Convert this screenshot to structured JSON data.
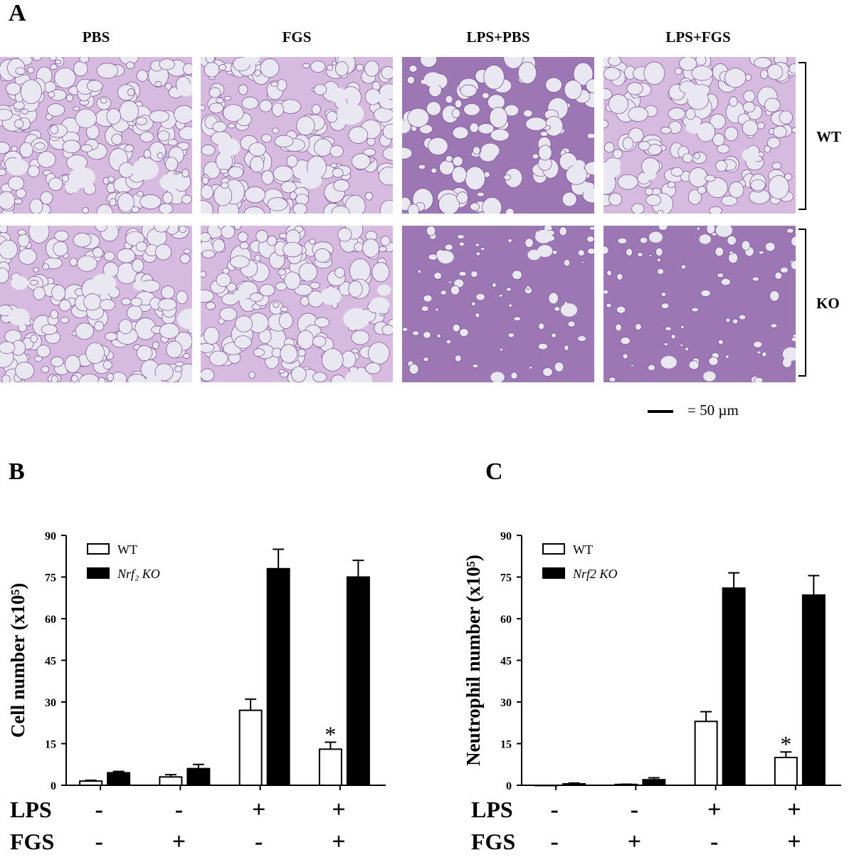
{
  "panel_a": {
    "letter": "A",
    "columns": [
      "PBS",
      "FGS",
      "LPS+PBS",
      "LPS+FGS"
    ],
    "rows": [
      "WT",
      "KO"
    ],
    "scale_label": "= 50 µm",
    "stain_colors": {
      "tissue": "#b784c4",
      "dense": "#7a4a9a",
      "space": "#e9e8f0"
    }
  },
  "panel_b": {
    "letter": "B"
  },
  "panel_c": {
    "letter": "C"
  },
  "chart_data": [
    {
      "type": "bar",
      "panel": "B",
      "ylabel": "Cell number (x10⁵)",
      "ylim": [
        0,
        90
      ],
      "yticks": [
        0,
        15,
        30,
        45,
        60,
        75,
        90
      ],
      "categories": [
        "1",
        "2",
        "3",
        "4"
      ],
      "series": [
        {
          "name": "WT",
          "color": "#ffffff",
          "values": [
            1.5,
            3,
            27,
            13
          ],
          "errors": [
            0.3,
            0.8,
            4,
            2.5
          ]
        },
        {
          "name": "Nrf2 KO",
          "color": "#000000",
          "values": [
            4.5,
            6,
            78,
            75
          ],
          "errors": [
            0.5,
            1.5,
            7,
            6
          ]
        }
      ],
      "legend": [
        "WT",
        "Nrf₂ KO"
      ],
      "legend_position": "top-left",
      "annotations": [
        {
          "text": "*",
          "category": 3,
          "series": "WT"
        }
      ],
      "treatments": {
        "LPS": {
          "label": "LPS",
          "signs": [
            "-",
            "-",
            "+",
            "+"
          ]
        },
        "FGS": {
          "label": "FGS",
          "signs": [
            "-",
            "+",
            "-",
            "+"
          ]
        }
      }
    },
    {
      "type": "bar",
      "panel": "C",
      "ylabel": "Neutrophil number (x10⁵)",
      "ylim": [
        0,
        90
      ],
      "yticks": [
        0,
        15,
        30,
        45,
        60,
        75,
        90
      ],
      "categories": [
        "1",
        "2",
        "3",
        "4"
      ],
      "series": [
        {
          "name": "WT",
          "color": "#ffffff",
          "values": [
            0,
            0.3,
            23,
            10
          ],
          "errors": [
            0,
            0.1,
            3.5,
            2
          ]
        },
        {
          "name": "Nrf2 KO",
          "color": "#000000",
          "values": [
            0.5,
            2,
            71,
            68.5
          ],
          "errors": [
            0.3,
            0.7,
            5.5,
            7
          ]
        }
      ],
      "legend": [
        "WT",
        "Nrf2 KO"
      ],
      "legend_position": "top-left",
      "annotations": [
        {
          "text": "*",
          "category": 3,
          "series": "WT"
        }
      ],
      "treatments": {
        "LPS": {
          "label": "LPS",
          "signs": [
            "-",
            "-",
            "+",
            "+"
          ]
        },
        "FGS": {
          "label": "FGS",
          "signs": [
            "-",
            "+",
            "-",
            "+"
          ]
        }
      }
    }
  ]
}
